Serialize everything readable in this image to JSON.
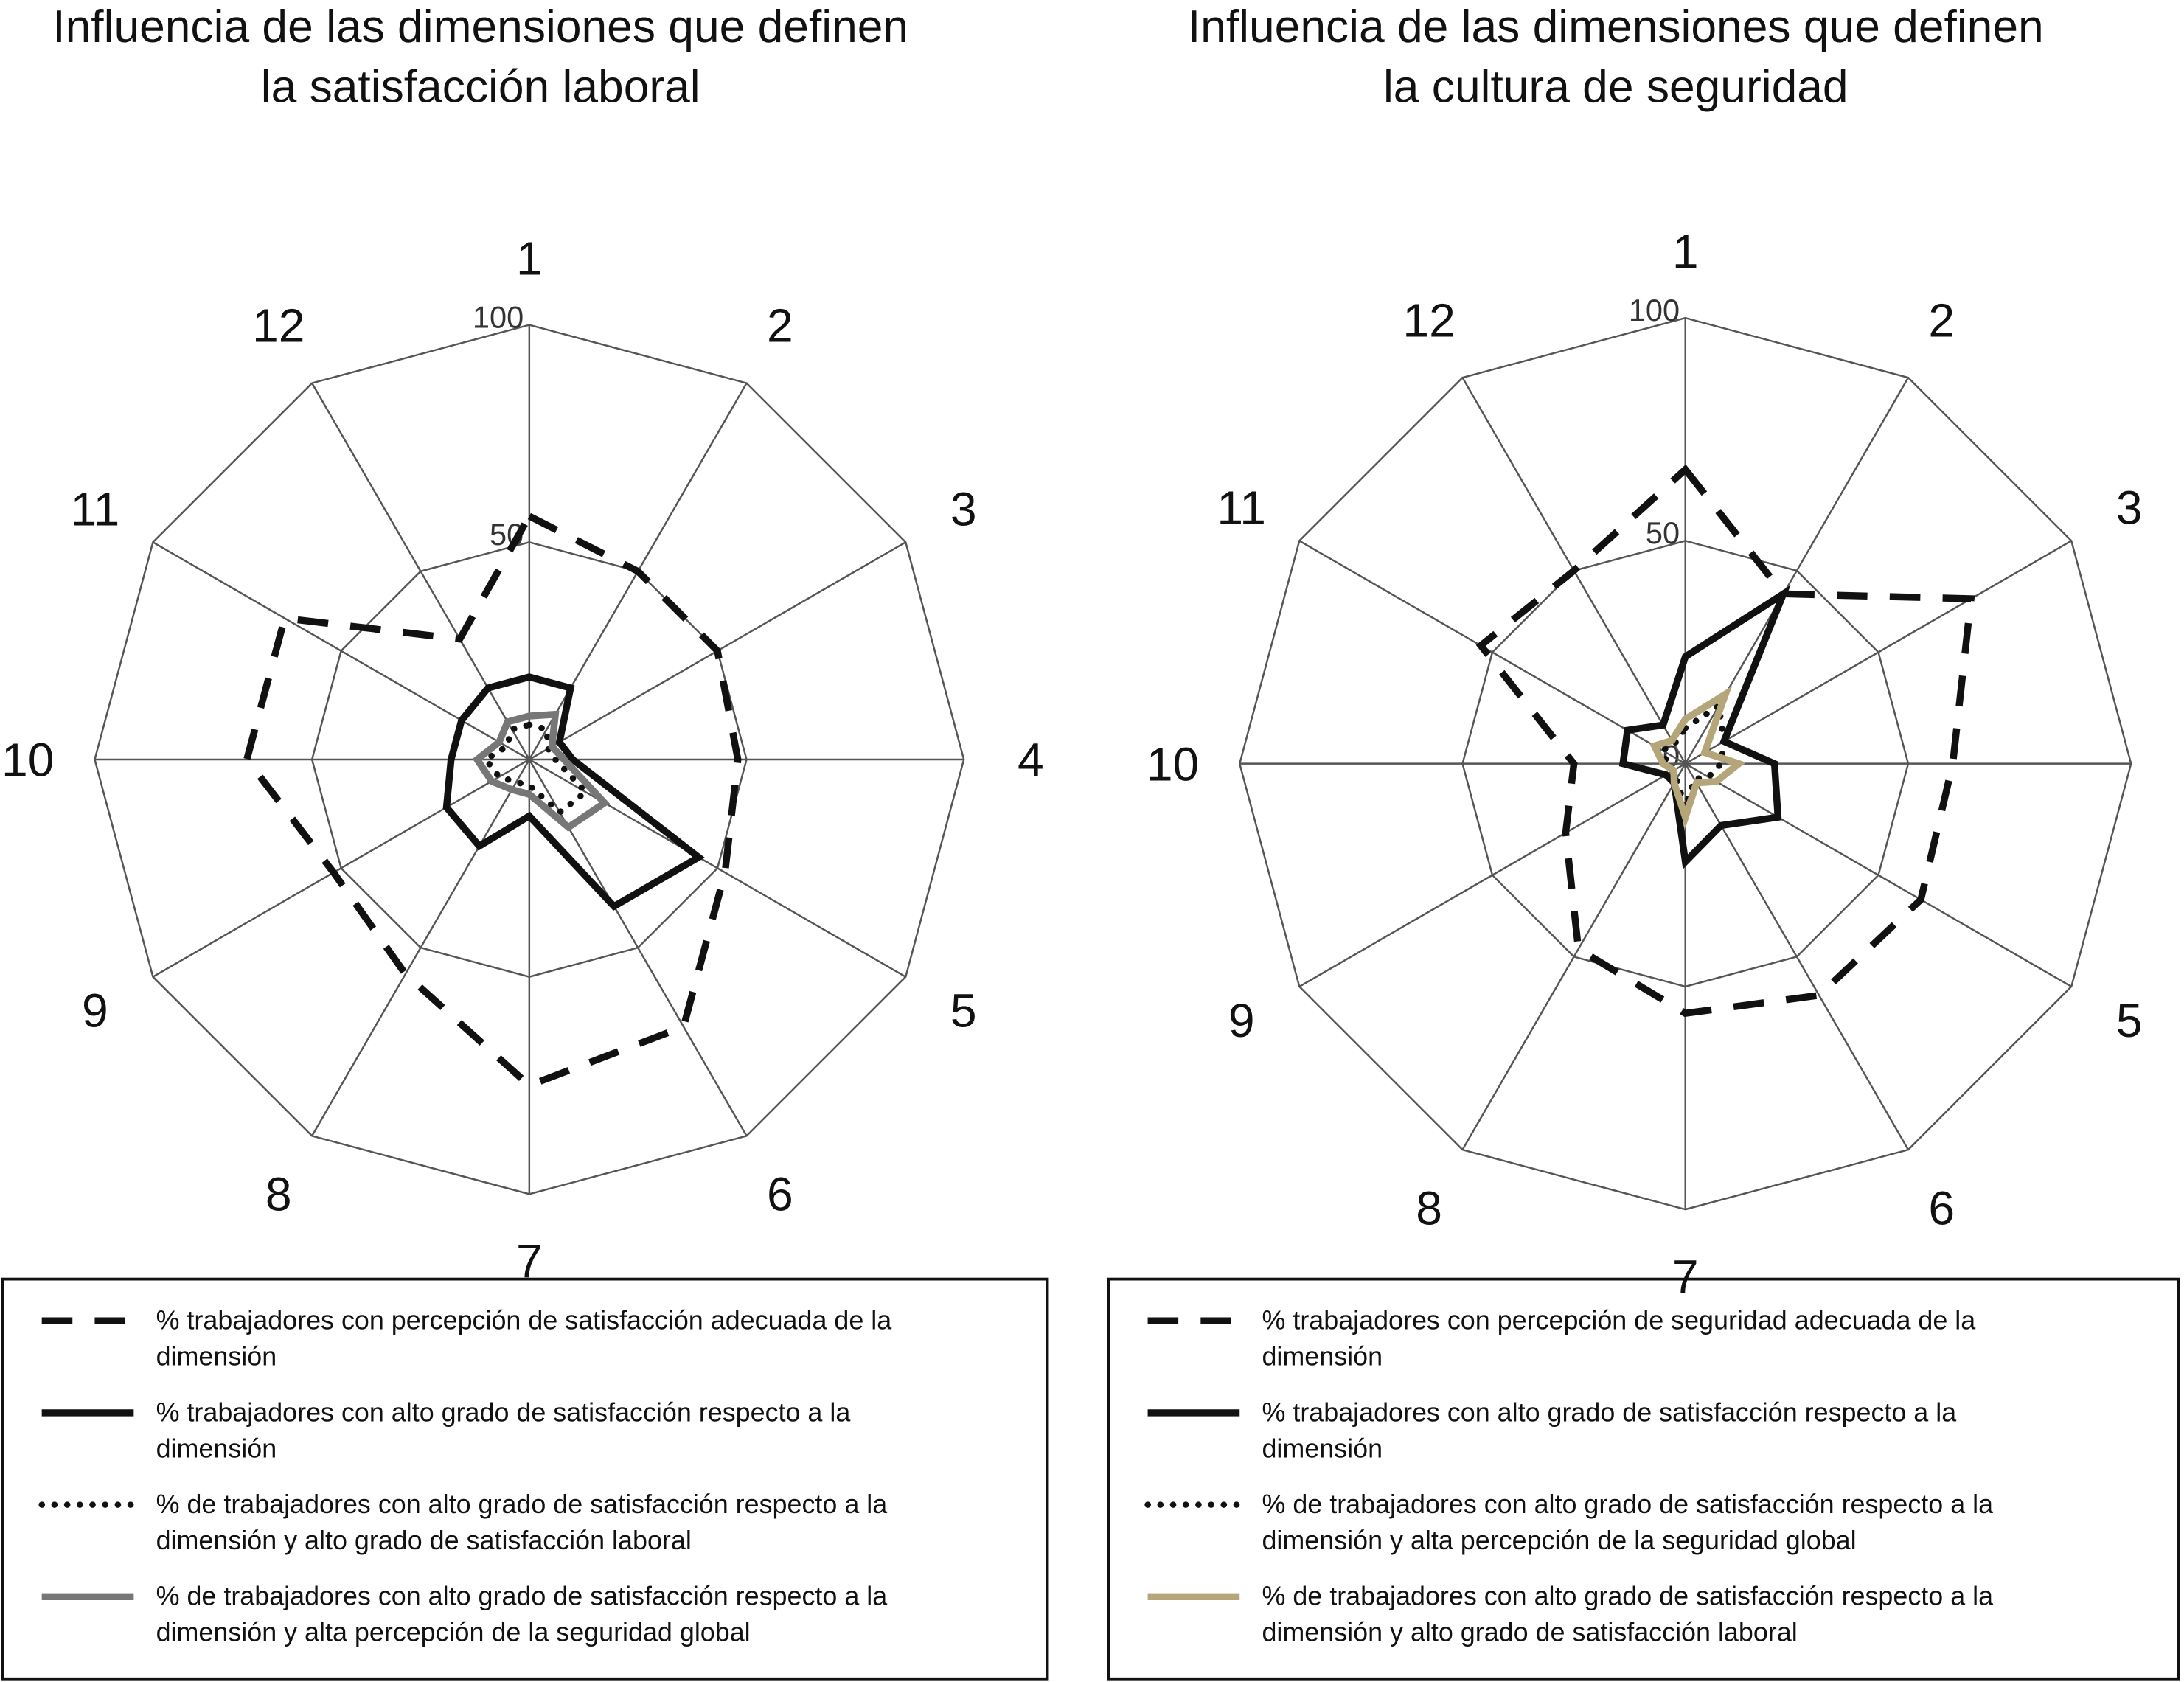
{
  "chart_data": [
    {
      "type": "radar",
      "title": [
        "Influencia de las dimensiones que definen",
        "la satisfacción laboral"
      ],
      "categories": [
        "1",
        "2",
        "3",
        "4",
        "5",
        "6",
        "7",
        "8",
        "9",
        "10",
        "11",
        "12"
      ],
      "rlim": [
        0,
        100
      ],
      "rticks": [
        50,
        100
      ],
      "series": [
        {
          "name": "% trabajadores con percepción de satisfacción adecuada de la dimensión",
          "color": "#111111",
          "style": "dashed",
          "values": [
            56,
            50,
            50,
            48,
            52,
            71,
            75,
            57,
            52,
            65,
            65,
            32
          ]
        },
        {
          "name": "% trabajadores con alto grado de satisfacción respecto a la dimensión",
          "color": "#111111",
          "style": "solid",
          "values": [
            19,
            19,
            8,
            10,
            45,
            39,
            13,
            23,
            22,
            18,
            18,
            19
          ]
        },
        {
          "name": "% de trabajadores con alto grado de satisfacción respecto a la dimensión y alto grado de satisfacción laboral",
          "color": "#111111",
          "style": "dotted",
          "values": [
            8,
            8,
            5,
            6,
            15,
            14,
            6,
            6,
            8,
            10,
            6,
            8
          ]
        },
        {
          "name": "% de trabajadores con alto grado de satisfacción respecto a la dimensión y alta percepción de la seguridad global",
          "color": "#777777",
          "style": "solid",
          "values": [
            10,
            12,
            6,
            8,
            20,
            18,
            8,
            8,
            10,
            12,
            8,
            10
          ]
        }
      ]
    },
    {
      "type": "radar",
      "title": [
        "Influencia de las dimensiones que definen",
        "la cultura de seguridad"
      ],
      "categories": [
        "1",
        "2",
        "3",
        "4",
        "5",
        "6",
        "7",
        "8",
        "9",
        "10",
        "11",
        "12"
      ],
      "rlim": [
        0,
        100
      ],
      "rticks": [
        0,
        50,
        100
      ],
      "series": [
        {
          "name": "% trabajadores con percepción de seguridad adecuada de la dimensión",
          "color": "#111111",
          "style": "dashed",
          "values": [
            66,
            44,
            74,
            60,
            61,
            60,
            56,
            48,
            31,
            25,
            53,
            50
          ]
        },
        {
          "name": "% trabajadores con alto grado de satisfacción respecto a la dimensión",
          "color": "#111111",
          "style": "solid",
          "values": [
            24,
            44,
            10,
            20,
            24,
            16,
            22,
            5,
            5,
            14,
            15,
            10
          ]
        },
        {
          "name": "% de trabajadores con alto grado de satisfacción respecto a la dimensión y alta percepción de la seguridad global",
          "color": "#111111",
          "style": "dotted",
          "values": [
            8,
            15,
            10,
            8,
            6,
            4,
            10,
            4,
            3,
            4,
            6,
            5
          ]
        },
        {
          "name": "% de trabajadores con alto grado de satisfacción respecto a la dimensión y alto grado de satisfacción laboral",
          "color": "#b5a67a",
          "style": "solid",
          "values": [
            10,
            18,
            5,
            12,
            8,
            5,
            12,
            5,
            3,
            5,
            8,
            6
          ]
        }
      ]
    }
  ]
}
